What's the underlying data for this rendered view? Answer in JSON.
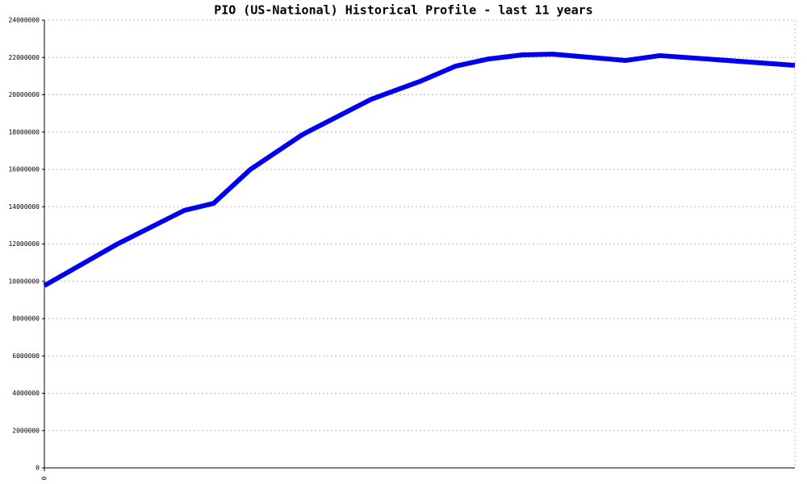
{
  "chart_data": {
    "type": "line",
    "title": "PIO (US-National) Historical Profile - last 11 years",
    "x": [
      0,
      1.06,
      2.05,
      2.48,
      3.02,
      3.78,
      4.79,
      5.5,
      6.03,
      6.51,
      7.01,
      7.45,
      8.52,
      9.02,
      11
    ],
    "series": [
      {
        "color": "#0000ee",
        "values": [
          9770000,
          11980000,
          13800000,
          14180000,
          16000000,
          17860000,
          19760000,
          20710000,
          21540000,
          21920000,
          22140000,
          22180000,
          21840000,
          22100000,
          21580000
        ]
      }
    ],
    "xlim": [
      0,
      11
    ],
    "xticks": [
      0
    ],
    "ylim": [
      0,
      24000000
    ],
    "yticks": [
      0,
      2000000,
      4000000,
      6000000,
      8000000,
      10000000,
      12000000,
      14000000,
      16000000,
      18000000,
      20000000,
      22000000,
      24000000
    ],
    "grid": true
  }
}
